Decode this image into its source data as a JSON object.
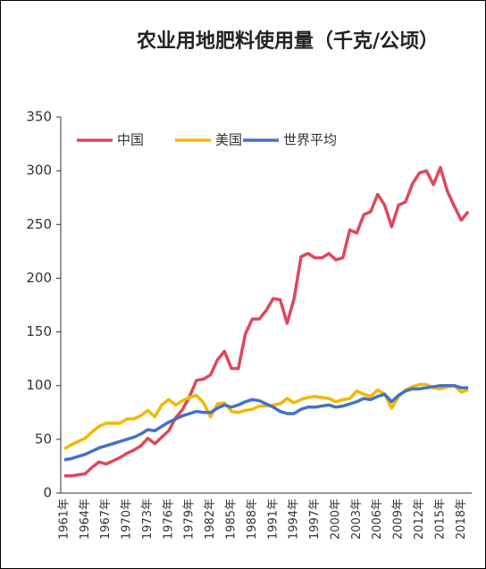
{
  "chart_data": {
    "type": "line",
    "title": "农业用地肥料使用量（千克/公顷）",
    "categories": [
      "1961年",
      null,
      null,
      "1964年",
      null,
      null,
      "1967年",
      null,
      null,
      "1970年",
      null,
      null,
      "1973年",
      null,
      null,
      "1976年",
      null,
      null,
      "1979年",
      null,
      null,
      "1982年",
      null,
      null,
      "1985年",
      null,
      null,
      "1988年",
      null,
      null,
      "1991年",
      null,
      null,
      "1994年",
      null,
      null,
      "1997年",
      null,
      null,
      "2000年",
      null,
      null,
      "2003年",
      null,
      null,
      "2006年",
      null,
      null,
      "2009年",
      null,
      null,
      "2012年",
      null,
      null,
      "2015年",
      null,
      null,
      "2018年",
      null
    ],
    "series": [
      {
        "name": "中国",
        "color": "#e0475b",
        "values": [
          16,
          16,
          17,
          18,
          24,
          29,
          27,
          30,
          33,
          37,
          40,
          44,
          51,
          46,
          52,
          58,
          70,
          78,
          90,
          105,
          106,
          110,
          124,
          132,
          116,
          116,
          148,
          162,
          162,
          170,
          181,
          180,
          158,
          181,
          220,
          223,
          219,
          219,
          223,
          217,
          219,
          245,
          242,
          259,
          262,
          278,
          268,
          248,
          268,
          271,
          288,
          298,
          300,
          287,
          303,
          281,
          267,
          254,
          262
        ]
      },
      {
        "name": "美国",
        "color": "#f2b800",
        "values": [
          41,
          45,
          48,
          51,
          57,
          62,
          65,
          65,
          65,
          69,
          69,
          72,
          77,
          71,
          82,
          87,
          82,
          86,
          89,
          91,
          84,
          71,
          83,
          84,
          76,
          75,
          77,
          78,
          81,
          81,
          82,
          83,
          88,
          84,
          87,
          89,
          90,
          89,
          88,
          85,
          87,
          88,
          95,
          92,
          90,
          96,
          92,
          79,
          90,
          96,
          99,
          101,
          101,
          98,
          97,
          99,
          100,
          94,
          96
        ]
      },
      {
        "name": "世界平均",
        "color": "#4472c4",
        "values": [
          31,
          32,
          34,
          36,
          39,
          42,
          44,
          46,
          48,
          50,
          52,
          55,
          59,
          58,
          62,
          66,
          69,
          72,
          74,
          76,
          75,
          75,
          79,
          82,
          80,
          82,
          85,
          87,
          86,
          83,
          80,
          76,
          74,
          74,
          78,
          80,
          80,
          81,
          82,
          80,
          81,
          83,
          85,
          88,
          87,
          90,
          92,
          85,
          91,
          95,
          97,
          97,
          98,
          99,
          100,
          100,
          100,
          98,
          98
        ]
      }
    ],
    "ylim": [
      0,
      350
    ],
    "yticks": [
      0,
      50,
      100,
      150,
      200,
      250,
      300,
      350
    ]
  }
}
